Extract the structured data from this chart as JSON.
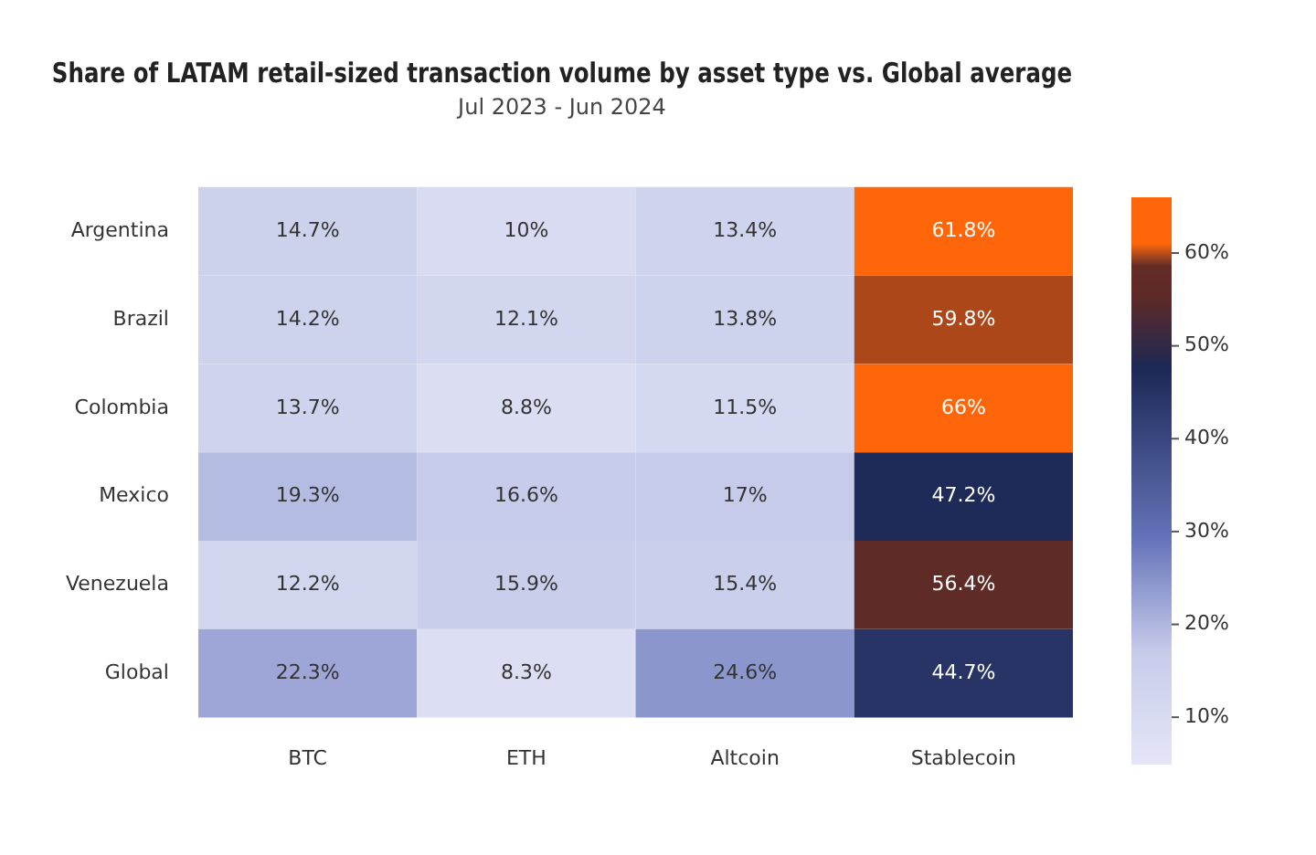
{
  "chart_data": {
    "type": "heatmap",
    "title": "Share of LATAM retail-sized transaction volume by asset type vs. Global average",
    "subtitle": "Jul 2023 - Jun 2024",
    "categories": [
      "BTC",
      "ETH",
      "Altcoin",
      "Stablecoin"
    ],
    "y_categories": [
      "Argentina",
      "Brazil",
      "Colombia",
      "Mexico",
      "Venezuela",
      "Global"
    ],
    "cells": [
      [
        14.7,
        10,
        13.4,
        61.8
      ],
      [
        14.2,
        12.1,
        13.8,
        59.8
      ],
      [
        13.7,
        8.8,
        11.5,
        66
      ],
      [
        19.3,
        16.6,
        17,
        47.2
      ],
      [
        12.2,
        15.9,
        15.4,
        56.4
      ],
      [
        22.3,
        8.3,
        24.6,
        44.7
      ]
    ],
    "cell_labels": [
      [
        "14.7%",
        "10%",
        "13.4%",
        "61.8%"
      ],
      [
        "14.2%",
        "12.1%",
        "13.8%",
        "59.8%"
      ],
      [
        "13.7%",
        "8.8%",
        "11.5%",
        "66%"
      ],
      [
        "19.3%",
        "16.6%",
        "17%",
        "47.2%"
      ],
      [
        "12.2%",
        "15.9%",
        "15.4%",
        "56.4%"
      ],
      [
        "22.3%",
        "8.3%",
        "24.6%",
        "44.7%"
      ]
    ],
    "clim": [
      5,
      66
    ],
    "cticks": [
      {
        "value": 10,
        "label": "10%"
      },
      {
        "value": 20,
        "label": "20%"
      },
      {
        "value": 30,
        "label": "30%"
      },
      {
        "value": 40,
        "label": "40%"
      },
      {
        "value": 50,
        "label": "50%"
      },
      {
        "value": 60,
        "label": "60%"
      }
    ]
  }
}
